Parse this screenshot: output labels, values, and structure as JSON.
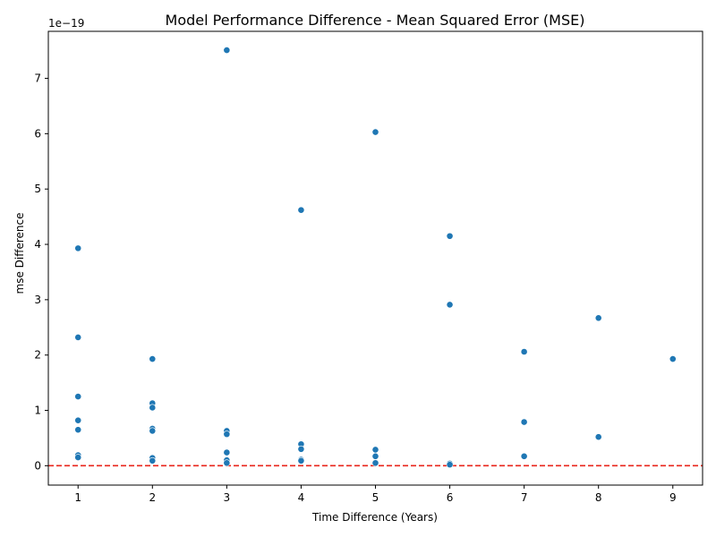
{
  "chart_data": {
    "type": "scatter",
    "title": "Model Performance Difference - Mean Squared Error (MSE)",
    "xlabel": "Time Difference (Years)",
    "ylabel": "mse Difference",
    "y_offset_text": "1e−19",
    "xlim": [
      0.6,
      9.4
    ],
    "ylim": [
      -0.35,
      7.85
    ],
    "y_scale_factor": 1e-19,
    "xticks": [
      "1",
      "2",
      "3",
      "4",
      "5",
      "6",
      "7",
      "8",
      "9"
    ],
    "yticks": [
      "0",
      "1",
      "2",
      "3",
      "4",
      "5",
      "6",
      "7"
    ],
    "grid": false,
    "reference_line": {
      "y": 0,
      "color": "#e8251b",
      "style": "dashed"
    },
    "marker_color": "#1f77b4",
    "points": [
      {
        "x": 1,
        "y": 3.93
      },
      {
        "x": 1,
        "y": 2.32
      },
      {
        "x": 1,
        "y": 1.25
      },
      {
        "x": 1,
        "y": 0.82
      },
      {
        "x": 1,
        "y": 0.65
      },
      {
        "x": 1,
        "y": 0.19
      },
      {
        "x": 1,
        "y": 0.15
      },
      {
        "x": 2,
        "y": 1.93
      },
      {
        "x": 2,
        "y": 1.13
      },
      {
        "x": 2,
        "y": 1.05
      },
      {
        "x": 2,
        "y": 0.67
      },
      {
        "x": 2,
        "y": 0.63
      },
      {
        "x": 2,
        "y": 0.14
      },
      {
        "x": 2,
        "y": 0.09
      },
      {
        "x": 3,
        "y": 7.51
      },
      {
        "x": 3,
        "y": 0.63
      },
      {
        "x": 3,
        "y": 0.57
      },
      {
        "x": 3,
        "y": 0.24
      },
      {
        "x": 3,
        "y": 0.1
      },
      {
        "x": 3,
        "y": 0.05
      },
      {
        "x": 4,
        "y": 4.62
      },
      {
        "x": 4,
        "y": 0.39
      },
      {
        "x": 4,
        "y": 0.3
      },
      {
        "x": 4,
        "y": 0.11
      },
      {
        "x": 4,
        "y": 0.09
      },
      {
        "x": 5,
        "y": 6.03
      },
      {
        "x": 5,
        "y": 0.29
      },
      {
        "x": 5,
        "y": 0.17
      },
      {
        "x": 5,
        "y": 0.05
      },
      {
        "x": 6,
        "y": 4.15
      },
      {
        "x": 6,
        "y": 2.91
      },
      {
        "x": 6,
        "y": 0.04
      },
      {
        "x": 6,
        "y": 0.02
      },
      {
        "x": 7,
        "y": 2.06
      },
      {
        "x": 7,
        "y": 0.79
      },
      {
        "x": 7,
        "y": 0.17
      },
      {
        "x": 8,
        "y": 2.67
      },
      {
        "x": 8,
        "y": 0.52
      },
      {
        "x": 9,
        "y": 1.93
      }
    ]
  }
}
